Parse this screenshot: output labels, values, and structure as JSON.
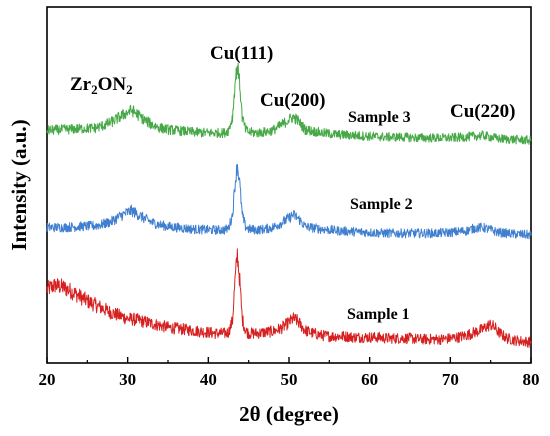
{
  "chart_data": {
    "type": "line",
    "title": "",
    "xlabel": "2θ (degree)",
    "ylabel": "Intensity (a.u.)",
    "xlim": [
      20,
      80
    ],
    "xticks": [
      20,
      30,
      40,
      50,
      60,
      70,
      80
    ],
    "y_axis_ticks_labeled": false,
    "grid": false,
    "legend": "none",
    "series": [
      {
        "name": "Sample 1",
        "color": "#d62020",
        "x": [
          20,
          21,
          22,
          23,
          24,
          25,
          26,
          27,
          28,
          29,
          30,
          31,
          32,
          33,
          34,
          35,
          36,
          37,
          38,
          39,
          40,
          41,
          42,
          42.5,
          43,
          43.3,
          43.6,
          43.9,
          44.2,
          44.6,
          45,
          46,
          47,
          48,
          49,
          50,
          50.5,
          51,
          51.5,
          52,
          53,
          54,
          55,
          56,
          57,
          58,
          59,
          60,
          61,
          62,
          63,
          64,
          65,
          66,
          67,
          68,
          69,
          70,
          71,
          72,
          73,
          74,
          74.5,
          75,
          75.5,
          76,
          77,
          78,
          79,
          80
        ],
        "y": [
          0.62,
          0.66,
          0.64,
          0.6,
          0.55,
          0.5,
          0.46,
          0.42,
          0.38,
          0.35,
          0.32,
          0.31,
          0.29,
          0.27,
          0.25,
          0.23,
          0.22,
          0.21,
          0.2,
          0.19,
          0.18,
          0.17,
          0.17,
          0.18,
          0.3,
          0.7,
          0.98,
          0.7,
          0.32,
          0.2,
          0.17,
          0.17,
          0.18,
          0.19,
          0.22,
          0.28,
          0.32,
          0.3,
          0.25,
          0.2,
          0.17,
          0.15,
          0.14,
          0.14,
          0.14,
          0.13,
          0.13,
          0.13,
          0.13,
          0.12,
          0.12,
          0.12,
          0.12,
          0.11,
          0.11,
          0.11,
          0.11,
          0.12,
          0.13,
          0.15,
          0.18,
          0.21,
          0.24,
          0.26,
          0.23,
          0.18,
          0.12,
          0.1,
          0.09,
          0.08
        ]
      },
      {
        "name": "Sample 2",
        "color": "#3f7fcf",
        "x": [
          20,
          22,
          24,
          26,
          27,
          28,
          29,
          30,
          30.5,
          31,
          32,
          33,
          34,
          35,
          36,
          38,
          40,
          42,
          42.5,
          43,
          43.3,
          43.6,
          43.9,
          44.2,
          44.6,
          45,
          46,
          47,
          48,
          49,
          50,
          50.5,
          51,
          51.5,
          52,
          54,
          56,
          58,
          60,
          62,
          64,
          66,
          68,
          70,
          72,
          73,
          74,
          75,
          76,
          78,
          80
        ],
        "y": [
          0.15,
          0.15,
          0.16,
          0.17,
          0.19,
          0.22,
          0.28,
          0.33,
          0.35,
          0.32,
          0.26,
          0.21,
          0.18,
          0.16,
          0.15,
          0.13,
          0.12,
          0.12,
          0.14,
          0.3,
          0.66,
          0.9,
          0.66,
          0.3,
          0.16,
          0.13,
          0.12,
          0.13,
          0.15,
          0.2,
          0.26,
          0.3,
          0.27,
          0.22,
          0.16,
          0.13,
          0.11,
          0.1,
          0.09,
          0.08,
          0.08,
          0.08,
          0.08,
          0.09,
          0.11,
          0.14,
          0.15,
          0.12,
          0.09,
          0.07,
          0.06
        ]
      },
      {
        "name": "Sample 3",
        "color": "#46a846",
        "x": [
          20,
          22,
          24,
          26,
          27,
          28,
          29,
          30,
          30.5,
          31,
          32,
          33,
          34,
          35,
          36,
          38,
          40,
          42,
          42.5,
          43,
          43.3,
          43.6,
          43.9,
          44.2,
          44.6,
          45,
          46,
          47,
          48,
          49,
          50,
          50.5,
          51,
          51.5,
          52,
          54,
          56,
          58,
          60,
          62,
          64,
          66,
          68,
          70,
          72,
          73,
          74,
          75,
          76,
          78,
          80
        ],
        "y": [
          0.2,
          0.21,
          0.22,
          0.23,
          0.26,
          0.3,
          0.36,
          0.42,
          0.44,
          0.41,
          0.33,
          0.27,
          0.23,
          0.21,
          0.2,
          0.18,
          0.17,
          0.17,
          0.2,
          0.36,
          0.75,
          1.0,
          0.75,
          0.36,
          0.21,
          0.18,
          0.17,
          0.18,
          0.2,
          0.26,
          0.33,
          0.36,
          0.33,
          0.27,
          0.21,
          0.17,
          0.15,
          0.14,
          0.13,
          0.12,
          0.12,
          0.11,
          0.11,
          0.11,
          0.12,
          0.13,
          0.14,
          0.12,
          0.1,
          0.09,
          0.08
        ]
      }
    ],
    "annotations": [
      {
        "text": "Zr",
        "sub": "2",
        "text2": "ON",
        "sub2": "2",
        "kind": "phase-label-zr2on2"
      },
      {
        "text": "Cu(111)",
        "kind": "phase-label-cu111"
      },
      {
        "text": "Cu(200)",
        "kind": "phase-label-cu200"
      },
      {
        "text": "Cu(220)",
        "kind": "phase-label-cu220"
      },
      {
        "text": "Sample 3",
        "kind": "series-label-sample3"
      },
      {
        "text": "Sample 2",
        "kind": "series-label-sample2"
      },
      {
        "text": "Sample 1",
        "kind": "series-label-sample1"
      }
    ]
  }
}
